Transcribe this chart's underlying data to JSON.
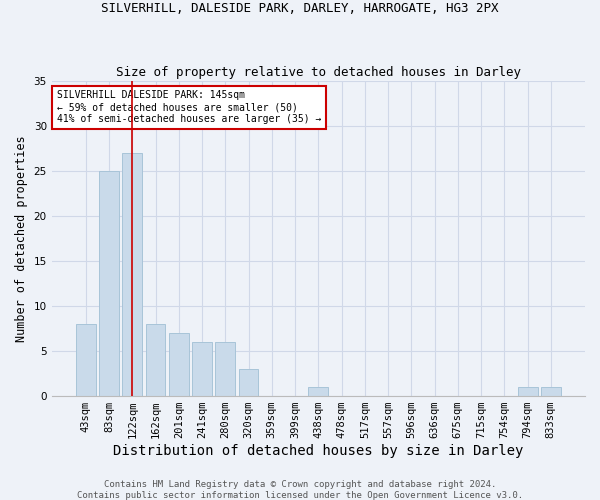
{
  "title1": "SILVERHILL, DALESIDE PARK, DARLEY, HARROGATE, HG3 2PX",
  "title2": "Size of property relative to detached houses in Darley",
  "xlabel": "Distribution of detached houses by size in Darley",
  "ylabel": "Number of detached properties",
  "categories": [
    "43sqm",
    "83sqm",
    "122sqm",
    "162sqm",
    "201sqm",
    "241sqm",
    "280sqm",
    "320sqm",
    "359sqm",
    "399sqm",
    "438sqm",
    "478sqm",
    "517sqm",
    "557sqm",
    "596sqm",
    "636sqm",
    "675sqm",
    "715sqm",
    "754sqm",
    "794sqm",
    "833sqm"
  ],
  "values": [
    8,
    25,
    27,
    8,
    7,
    6,
    6,
    3,
    0,
    0,
    1,
    0,
    0,
    0,
    0,
    0,
    0,
    0,
    0,
    1,
    1
  ],
  "bar_color": "#c9daea",
  "bar_edge_color": "#a8c4d8",
  "grid_color": "#d0d8e8",
  "background_color": "#eef2f8",
  "vline_x_index": 2,
  "vline_color": "#cc0000",
  "annotation_text": "SILVERHILL DALESIDE PARK: 145sqm\n← 59% of detached houses are smaller (50)\n41% of semi-detached houses are larger (35) →",
  "annotation_box_color": "#ffffff",
  "annotation_box_edge": "#cc0000",
  "ylim": [
    0,
    35
  ],
  "yticks": [
    0,
    5,
    10,
    15,
    20,
    25,
    30,
    35
  ],
  "footnote": "Contains HM Land Registry data © Crown copyright and database right 2024.\nContains public sector information licensed under the Open Government Licence v3.0.",
  "title1_fontsize": 9,
  "title2_fontsize": 9,
  "xlabel_fontsize": 10,
  "ylabel_fontsize": 8.5,
  "tick_fontsize": 7.5,
  "footnote_fontsize": 6.5,
  "annot_fontsize": 7
}
